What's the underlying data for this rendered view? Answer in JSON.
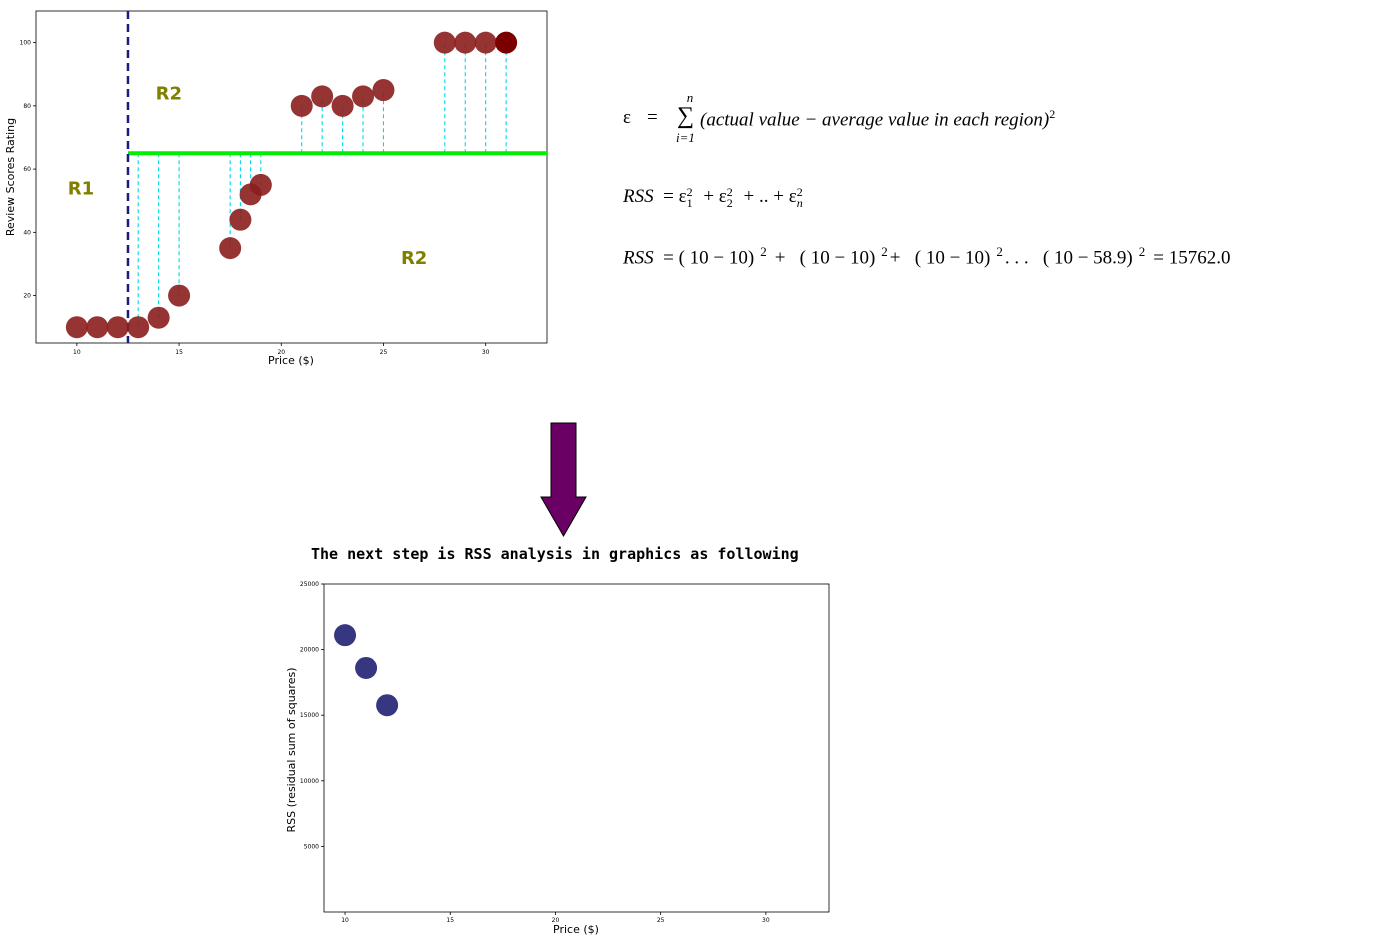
{
  "chart_data": [
    {
      "type": "scatter",
      "title": "",
      "xlabel": "Price ($)",
      "ylabel": "Review Scores Rating",
      "xlim": [
        8,
        33
      ],
      "ylim": [
        5,
        110
      ],
      "xticks": [
        10,
        15,
        20,
        25,
        30
      ],
      "yticks": [
        20,
        40,
        60,
        80,
        100
      ],
      "x": [
        10,
        11,
        12,
        13,
        14,
        15,
        17.5,
        18,
        18.5,
        19,
        21,
        22,
        23,
        24,
        25,
        28,
        29,
        30,
        31
      ],
      "y": [
        10,
        10,
        10,
        10,
        13,
        20,
        35,
        44,
        52,
        55,
        80,
        83,
        80,
        83,
        85,
        100,
        100,
        100,
        100
      ],
      "split_x": 12.5,
      "mean_line": {
        "value": 65,
        "from_x": 12.5
      },
      "regions": [
        {
          "label": "R1",
          "x": 10.2,
          "y": 52
        },
        {
          "label": "R2",
          "x": 14.5,
          "y": 82
        },
        {
          "label": "R2",
          "x": 26.5,
          "y": 30
        }
      ],
      "colors": {
        "points": "#8b1e1e",
        "last_point": "#7a0000",
        "split": "#1a1a80",
        "mean": "#00ee00",
        "residuals": "#00d8e8",
        "regions": "#808000"
      }
    },
    {
      "type": "scatter",
      "title": "",
      "xlabel": "Price ($)",
      "ylabel": "RSS (residual sum of squares)",
      "xlim": [
        9,
        33
      ],
      "ylim": [
        0,
        25000
      ],
      "xticks": [
        10,
        15,
        20,
        25,
        30
      ],
      "yticks": [
        5000,
        10000,
        15000,
        20000,
        25000
      ],
      "x": [
        10,
        11,
        12
      ],
      "y": [
        21100,
        18600,
        15762
      ],
      "colors": {
        "points": "#2b2b7a"
      }
    }
  ],
  "formulas": {
    "epsilon": {
      "lhs": "ε",
      "eq": "=",
      "sigma": "∑",
      "upper": "n",
      "lower": "i=1",
      "body": "(actual value  −  average value in each region)",
      "power": "2"
    },
    "rss_sum": {
      "lhs": "RSS",
      "t1": "ε",
      "s1": "1",
      "t2": "ε",
      "s2": "2",
      "dots": "..",
      "tn": "ε",
      "sn": "n",
      "power": "2"
    },
    "rss_calc": {
      "lhs": "RSS",
      "terms": [
        "(  10  −  10)",
        "(  10  −  10)",
        "(  10  −  10)",
        "(  10  −  58.9)"
      ],
      "power": "2",
      "ellipsis": ". . .",
      "result": "= 15762.0"
    }
  },
  "caption": "The next step is RSS analysis in graphics as following",
  "arrow": {
    "color": "#6a0064"
  }
}
